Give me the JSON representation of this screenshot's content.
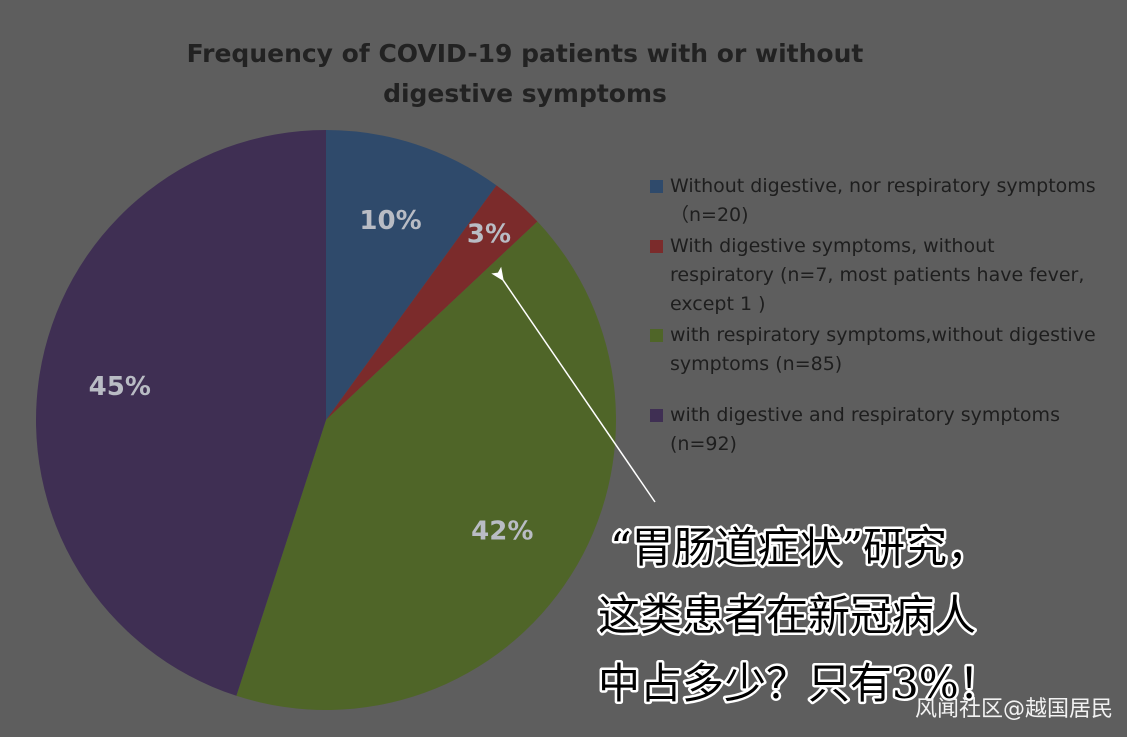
{
  "chart_data": {
    "type": "pie",
    "title": "Frequency  of COVID-19 patients with or without digestive symptoms",
    "categories": [
      "Without digestive, nor  respiratory symptoms （n=20)",
      "With digestive symptoms, without respiratory (n=7, most patients have fever, except 1 )",
      "with respiratory symptoms,without digestive symptoms (n=85)",
      "with digestive and respiratory symptoms (n=92)"
    ],
    "values": [
      10,
      3,
      42,
      45
    ],
    "value_labels": [
      "10%",
      "3%",
      "42%",
      "45%"
    ],
    "colors": [
      "#2f4a6b",
      "#7b2b2b",
      "#4f6528",
      "#3f2f53"
    ],
    "legend": "right",
    "annotation_lines": [
      "“胃肠道症状”研究，",
      "这类患者在新冠病人",
      "中占多少？只有3%！"
    ],
    "watermark": "风闻社区@越国居民"
  }
}
